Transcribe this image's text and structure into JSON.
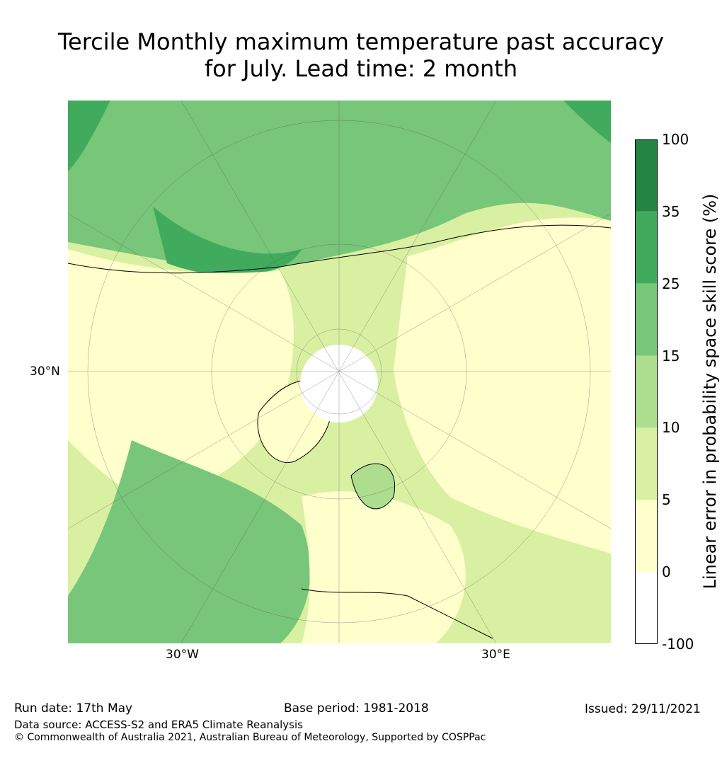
{
  "title": {
    "line1": "Tercile Monthly maximum temperature past accuracy",
    "line2": "for July. Lead time: 2 month"
  },
  "map": {
    "labels": {
      "lat": "30°N",
      "lon_west": "30°W",
      "lon_east": "30°E"
    },
    "colors": {
      "land_mid": "#a9dc8e",
      "land_light": "#d9f0a3",
      "ocean": "#4aab5d"
    }
  },
  "colorbar": {
    "label": "Linear error in probability space skill score (%)",
    "ticks": [
      "100",
      "35",
      "25",
      "15",
      "10",
      "5",
      "0",
      "-100"
    ],
    "colors": [
      "#238443",
      "#41ab5d",
      "#78c679",
      "#addd8e",
      "#d9f0a3",
      "#ffffcc",
      "#ffffff"
    ]
  },
  "footer": {
    "run_date": "Run date: 17th May",
    "base_period": "Base period: 1981-2018",
    "issued": "Issued: 29/11/2021",
    "data_source": "Data source: ACCESS-S2 and ERA5 Climate Reanalysis",
    "copyright": "© Commonwealth of Australia 2021, Australian Bureau of Meteorology, Supported by COSPPac"
  }
}
